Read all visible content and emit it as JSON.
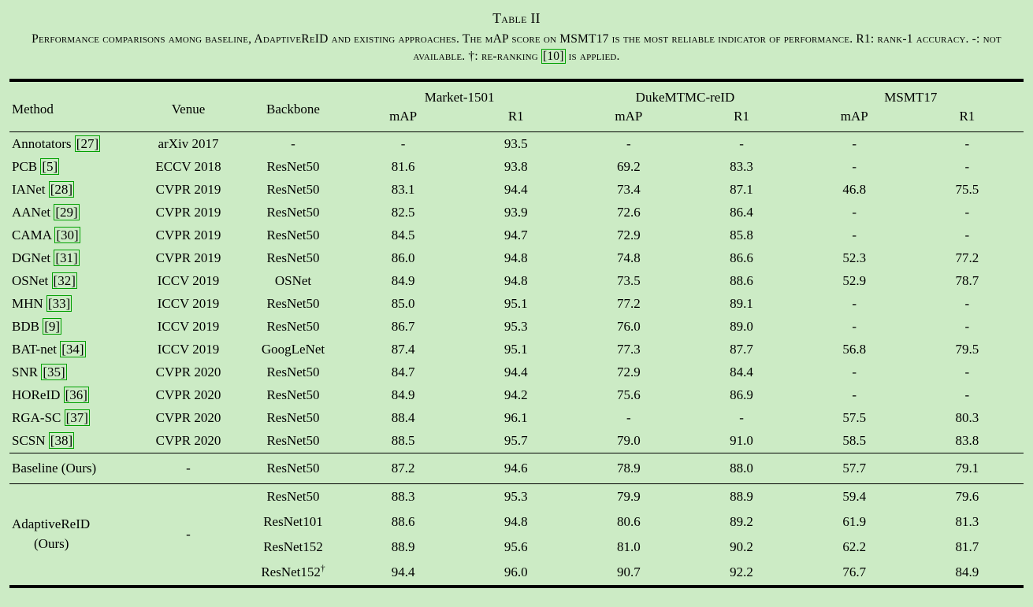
{
  "page": {
    "title": "Table II",
    "caption": {
      "part1": "Performance comparisons among baseline, AdaptiveReID and existing approaches. The mAP score on MSMT17 is the most reliable indicator of performance. R1: rank-1 accuracy. -: not available. †: re-ranking ",
      "cite": "[10]",
      "part2": " is applied."
    }
  },
  "colors": {
    "background": "#ccebc5",
    "citation_border": "#00a000",
    "text": "#000000"
  },
  "table": {
    "dagger_symbol": "†",
    "header": {
      "method": "Method",
      "venue": "Venue",
      "backbone": "Backbone",
      "groups": [
        "Market-1501",
        "DukeMTMC-reID",
        "MSMT17"
      ],
      "sub": [
        "mAP",
        "R1"
      ]
    },
    "sections": [
      {
        "name": "existing",
        "rows": [
          {
            "method": "Annotators",
            "cite": "[27]",
            "venue": "arXiv 2017",
            "backbone": "-",
            "values": [
              "-",
              "93.5",
              "-",
              "-",
              "-",
              "-"
            ]
          },
          {
            "method": "PCB",
            "cite": "[5]",
            "venue": "ECCV 2018",
            "backbone": "ResNet50",
            "values": [
              "81.6",
              "93.8",
              "69.2",
              "83.3",
              "-",
              "-"
            ]
          },
          {
            "method": "IANet",
            "cite": "[28]",
            "venue": "CVPR 2019",
            "backbone": "ResNet50",
            "values": [
              "83.1",
              "94.4",
              "73.4",
              "87.1",
              "46.8",
              "75.5"
            ]
          },
          {
            "method": "AANet",
            "cite": "[29]",
            "venue": "CVPR 2019",
            "backbone": "ResNet50",
            "values": [
              "82.5",
              "93.9",
              "72.6",
              "86.4",
              "-",
              "-"
            ]
          },
          {
            "method": "CAMA",
            "cite": "[30]",
            "venue": "CVPR 2019",
            "backbone": "ResNet50",
            "values": [
              "84.5",
              "94.7",
              "72.9",
              "85.8",
              "-",
              "-"
            ]
          },
          {
            "method": "DGNet",
            "cite": "[31]",
            "venue": "CVPR 2019",
            "backbone": "ResNet50",
            "values": [
              "86.0",
              "94.8",
              "74.8",
              "86.6",
              "52.3",
              "77.2"
            ]
          },
          {
            "method": "OSNet",
            "cite": "[32]",
            "venue": "ICCV 2019",
            "backbone": "OSNet",
            "values": [
              "84.9",
              "94.8",
              "73.5",
              "88.6",
              "52.9",
              "78.7"
            ]
          },
          {
            "method": "MHN",
            "cite": "[33]",
            "venue": "ICCV 2019",
            "backbone": "ResNet50",
            "values": [
              "85.0",
              "95.1",
              "77.2",
              "89.1",
              "-",
              "-"
            ]
          },
          {
            "method": "BDB",
            "cite": "[9]",
            "venue": "ICCV 2019",
            "backbone": "ResNet50",
            "values": [
              "86.7",
              "95.3",
              "76.0",
              "89.0",
              "-",
              "-"
            ]
          },
          {
            "method": "BAT-net",
            "cite": "[34]",
            "venue": "ICCV 2019",
            "backbone": "GoogLeNet",
            "values": [
              "87.4",
              "95.1",
              "77.3",
              "87.7",
              "56.8",
              "79.5"
            ]
          },
          {
            "method": "SNR",
            "cite": "[35]",
            "venue": "CVPR 2020",
            "backbone": "ResNet50",
            "values": [
              "84.7",
              "94.4",
              "72.9",
              "84.4",
              "-",
              "-"
            ]
          },
          {
            "method": "HOReID",
            "cite": "[36]",
            "venue": "CVPR 2020",
            "backbone": "ResNet50",
            "values": [
              "84.9",
              "94.2",
              "75.6",
              "86.9",
              "-",
              "-"
            ]
          },
          {
            "method": "RGA-SC",
            "cite": "[37]",
            "venue": "CVPR 2020",
            "backbone": "ResNet50",
            "values": [
              "88.4",
              "96.1",
              "-",
              "-",
              "57.5",
              "80.3"
            ]
          },
          {
            "method": "SCSN",
            "cite": "[38]",
            "venue": "CVPR 2020",
            "backbone": "ResNet50",
            "values": [
              "88.5",
              "95.7",
              "79.0",
              "91.0",
              "58.5",
              "83.8"
            ]
          }
        ]
      },
      {
        "name": "baseline",
        "rows": [
          {
            "method": "Baseline (Ours)",
            "cite": null,
            "venue": "-",
            "backbone": "ResNet50",
            "values": [
              "87.2",
              "94.6",
              "78.9",
              "88.0",
              "57.7",
              "79.1"
            ]
          }
        ]
      },
      {
        "name": "adaptive",
        "group": {
          "method_lines": [
            "AdaptiveReID",
            "(Ours)"
          ],
          "venue": "-"
        },
        "rows": [
          {
            "backbone": "ResNet50",
            "dagger": false,
            "values": [
              "88.3",
              "95.3",
              "79.9",
              "88.9",
              "59.4",
              "79.6"
            ]
          },
          {
            "backbone": "ResNet101",
            "dagger": false,
            "values": [
              "88.6",
              "94.8",
              "80.6",
              "89.2",
              "61.9",
              "81.3"
            ]
          },
          {
            "backbone": "ResNet152",
            "dagger": false,
            "values": [
              "88.9",
              "95.6",
              "81.0",
              "90.2",
              "62.2",
              "81.7"
            ]
          },
          {
            "backbone": "ResNet152",
            "dagger": true,
            "values": [
              "94.4",
              "96.0",
              "90.7",
              "92.2",
              "76.7",
              "84.9"
            ]
          }
        ]
      }
    ]
  }
}
